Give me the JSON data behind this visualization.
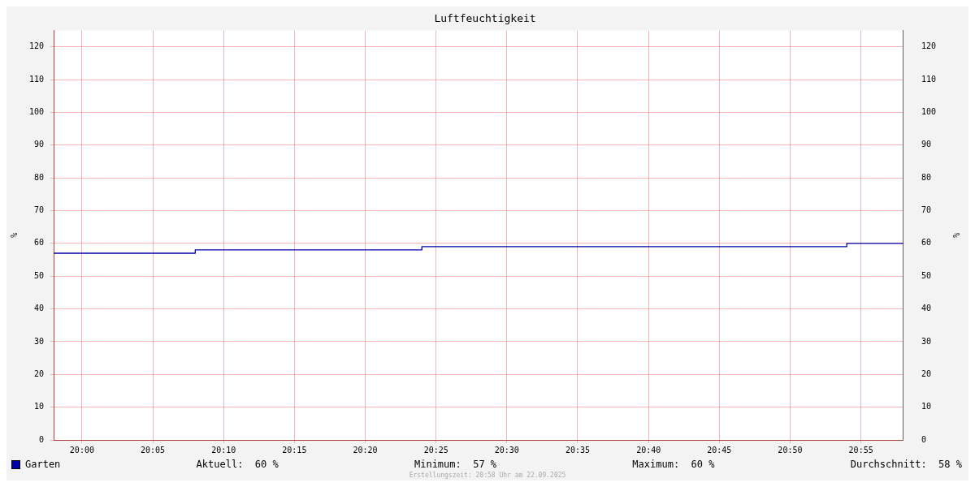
{
  "chart_data": {
    "type": "step",
    "title": "Luftfeuchtigkeit",
    "ylabel": "%",
    "y2label": "%",
    "x": [
      19.9667,
      20.1333,
      20.4,
      20.9,
      20.9667
    ],
    "series": [
      {
        "name": "Garten",
        "color": "#0000aa",
        "values": [
          57,
          58,
          59,
          60,
          60
        ]
      }
    ],
    "xlim": [
      19.9667,
      20.9667
    ],
    "xticks": [
      {
        "value": 20,
        "label": "20:00"
      },
      {
        "value": 20.0833,
        "label": "20:05"
      },
      {
        "value": 20.1667,
        "label": "20:10"
      },
      {
        "value": 20.25,
        "label": "20:15"
      },
      {
        "value": 20.3333,
        "label": "20:20"
      },
      {
        "value": 20.4167,
        "label": "20:25"
      },
      {
        "value": 20.5,
        "label": "20:30"
      },
      {
        "value": 20.5833,
        "label": "20:35"
      },
      {
        "value": 20.6667,
        "label": "20:40"
      },
      {
        "value": 20.75,
        "label": "20:45"
      },
      {
        "value": 20.8333,
        "label": "20:50"
      },
      {
        "value": 20.9167,
        "label": "20:55"
      }
    ],
    "ylim": [
      0,
      125
    ],
    "yticks": [
      0,
      10,
      20,
      30,
      40,
      50,
      60,
      70,
      80,
      90,
      100,
      110,
      120
    ],
    "y2lim": [
      0,
      125
    ],
    "y2ticks": [
      0,
      10,
      20,
      30,
      40,
      50,
      60,
      70,
      80,
      90,
      100,
      110,
      120
    ],
    "grid": true,
    "legend": "bottom left",
    "marker": "none",
    "line_style": "solid",
    "annotations": [
      "Aktuell:  60 %",
      "Minimum:  57 %",
      "Maximum:  60 %",
      "Durchschnitt:  58 %",
      "Erstellungszeit: 20:58 Uhr am 22.09.2025"
    ]
  }
}
